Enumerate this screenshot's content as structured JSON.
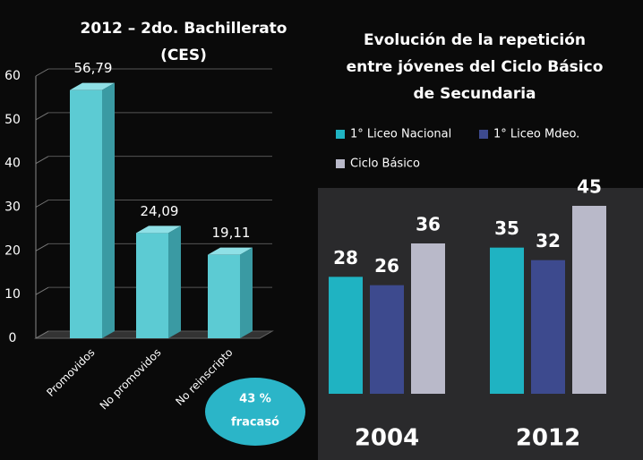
{
  "chart_data": [
    {
      "type": "bar3d",
      "title": [
        "2012 – 2do. Bachillerato",
        "(CES)"
      ],
      "categories": [
        "Promovidos",
        "No promovidos",
        "No reinscripto"
      ],
      "values": [
        56.79,
        24.09,
        19.11
      ],
      "value_labels": [
        "56,79",
        "24,09",
        "19,11"
      ],
      "color": "#5ccbd3",
      "ylim": [
        0,
        60
      ],
      "yticks": [
        0,
        10,
        20,
        30,
        40,
        50,
        60
      ],
      "annotation": [
        "43 %",
        "fracasó"
      ]
    },
    {
      "type": "grouped_bar",
      "title": [
        "Evolución de la repetición",
        "entre jóvenes del Ciclo Básico",
        "de Secundaria"
      ],
      "categories": [
        "2004",
        "2012"
      ],
      "series": [
        {
          "name": "1° Liceo Nacional",
          "color": "#1fb3c2",
          "values": [
            28,
            35
          ]
        },
        {
          "name": "1° Liceo Mdeo.",
          "color": "#3d4a8e",
          "values": [
            26,
            32
          ]
        },
        {
          "name": "Ciclo Básico",
          "color": "#b9b9c9",
          "values": [
            36,
            45
          ]
        }
      ]
    }
  ]
}
